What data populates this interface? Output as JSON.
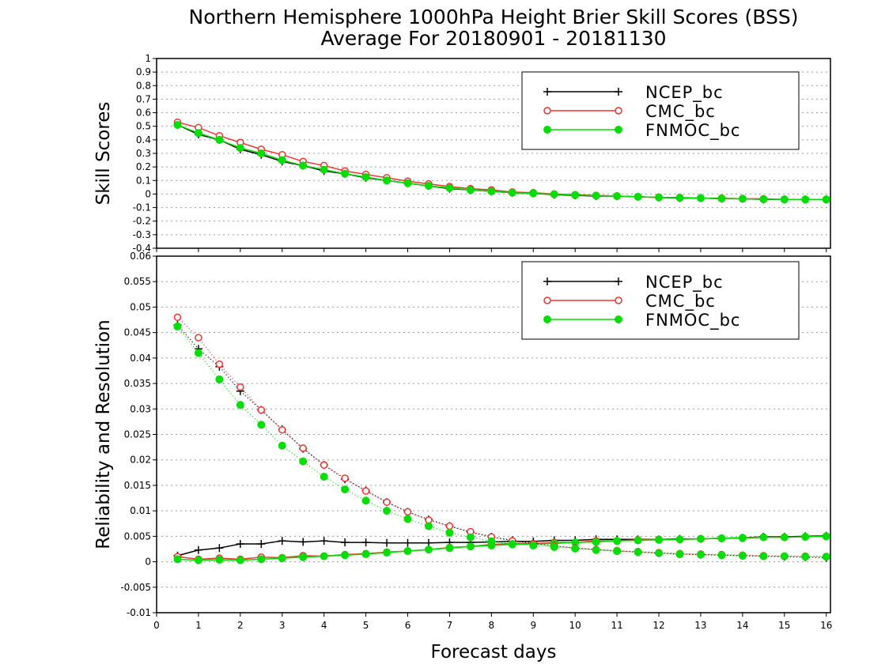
{
  "title_line1": "Northern Hemisphere 1000hPa Height Brier Skill Scores (BSS)",
  "title_line2": "Average For 20180901 - 20181130",
  "xlabel": "Forecast days",
  "colors": {
    "NCEP_bc": "#000000",
    "CMC_bc": "#ee3333",
    "FNMOC_bc": "#00dd00"
  },
  "chart_data": [
    {
      "type": "line",
      "ylabel": "Skill Scores",
      "xlim": [
        0,
        16.1
      ],
      "ylim": [
        -0.4,
        1
      ],
      "grid": true,
      "legend_position": "top-right",
      "x_ticks": [
        0,
        1,
        2,
        3,
        4,
        5,
        6,
        7,
        8,
        9,
        10,
        11,
        12,
        13,
        14,
        15,
        16
      ],
      "y_ticks": [
        -0.4,
        -0.3,
        -0.2,
        -0.1,
        0,
        0.1,
        0.2,
        0.3,
        0.4,
        0.5,
        0.6,
        0.7,
        0.8,
        0.9,
        1
      ],
      "y_tick_labels": [
        "-0.4",
        "-0.3",
        "-0.2",
        "-0.1",
        "0",
        "0.1",
        "0.2",
        "0.3",
        "0.4",
        "0.5",
        "0.6",
        "0.7",
        "0.8",
        "0.9",
        "1"
      ],
      "x": [
        0.5,
        1,
        1.5,
        2,
        2.5,
        3,
        3.5,
        4,
        4.5,
        5,
        5.5,
        6,
        6.5,
        7,
        7.5,
        8,
        8.5,
        9,
        9.5,
        10,
        10.5,
        11,
        11.5,
        12,
        12.5,
        13,
        13.5,
        14,
        14.5,
        15,
        15.5,
        16
      ],
      "series": [
        {
          "name": "NCEP_bc",
          "marker": "plus",
          "style": "solid",
          "values": [
            0.51,
            0.44,
            0.4,
            0.33,
            0.29,
            0.24,
            0.21,
            0.17,
            0.15,
            0.12,
            0.1,
            0.08,
            0.06,
            0.04,
            0.03,
            0.02,
            0.01,
            0.005,
            -0.005,
            -0.01,
            -0.015,
            -0.015,
            -0.02,
            -0.025,
            -0.03,
            -0.03,
            -0.035,
            -0.035,
            -0.04,
            -0.04,
            -0.04,
            -0.04
          ]
        },
        {
          "name": "CMC_bc",
          "marker": "open-circle",
          "style": "solid",
          "values": [
            0.53,
            0.49,
            0.43,
            0.38,
            0.33,
            0.29,
            0.24,
            0.21,
            0.17,
            0.145,
            0.12,
            0.095,
            0.075,
            0.055,
            0.04,
            0.03,
            0.015,
            0.01,
            0.0,
            -0.005,
            -0.01,
            -0.015,
            -0.02,
            -0.025,
            -0.025,
            -0.03,
            -0.03,
            -0.035,
            -0.035,
            -0.04,
            -0.04,
            -0.04
          ]
        },
        {
          "name": "FNMOC_bc",
          "marker": "filled-circle",
          "style": "solid",
          "values": [
            0.51,
            0.45,
            0.4,
            0.34,
            0.3,
            0.25,
            0.21,
            0.18,
            0.15,
            0.125,
            0.1,
            0.08,
            0.06,
            0.045,
            0.03,
            0.02,
            0.01,
            0.005,
            -0.002,
            -0.008,
            -0.012,
            -0.015,
            -0.02,
            -0.025,
            -0.028,
            -0.03,
            -0.033,
            -0.035,
            -0.038,
            -0.04,
            -0.04,
            -0.04
          ]
        }
      ]
    },
    {
      "type": "line",
      "ylabel": "Reliability and Resolution",
      "xlim": [
        0,
        16.1
      ],
      "ylim": [
        -0.01,
        0.06
      ],
      "grid": true,
      "legend_position": "top-right",
      "x_ticks": [
        0,
        1,
        2,
        3,
        4,
        5,
        6,
        7,
        8,
        9,
        10,
        11,
        12,
        13,
        14,
        15,
        16
      ],
      "y_ticks": [
        -0.01,
        -0.005,
        0,
        0.005,
        0.01,
        0.015,
        0.02,
        0.025,
        0.03,
        0.035,
        0.04,
        0.045,
        0.05,
        0.055,
        0.06
      ],
      "y_tick_labels": [
        "-0.01",
        "-0.005",
        "0",
        "0.005",
        "0.01",
        "0.015",
        "0.02",
        "0.025",
        "0.03",
        "0.035",
        "0.04",
        "0.045",
        "0.05",
        "0.055",
        "0.06"
      ],
      "x": [
        0.5,
        1,
        1.5,
        2,
        2.5,
        3,
        3.5,
        4,
        4.5,
        5,
        5.5,
        6,
        6.5,
        7,
        7.5,
        8,
        8.5,
        9,
        9.5,
        10,
        10.5,
        11,
        11.5,
        12,
        12.5,
        13,
        13.5,
        14,
        14.5,
        15,
        15.5,
        16
      ],
      "series": [
        {
          "name": "NCEP_bc",
          "marker": "plus",
          "style": "solid",
          "group": "reliability",
          "values": [
            0.0012,
            0.0023,
            0.0027,
            0.0035,
            0.0035,
            0.0041,
            0.0039,
            0.0041,
            0.0038,
            0.0038,
            0.0037,
            0.0037,
            0.0037,
            0.0038,
            0.0038,
            0.0039,
            0.004,
            0.004,
            0.0042,
            0.0042,
            0.0044,
            0.0044,
            0.0044,
            0.0044,
            0.0045,
            0.0045,
            0.0046,
            0.0047,
            0.0049,
            0.0049,
            0.005,
            0.0051
          ]
        },
        {
          "name": "CMC_bc",
          "marker": "open-circle",
          "style": "solid",
          "group": "reliability",
          "values": [
            0.001,
            0.0005,
            0.0007,
            0.0005,
            0.0009,
            0.0008,
            0.0012,
            0.0011,
            0.0014,
            0.0016,
            0.0019,
            0.0021,
            0.0024,
            0.0028,
            0.003,
            0.0034,
            0.0036,
            0.0036,
            0.0038,
            0.0038,
            0.0041,
            0.0041,
            0.0043,
            0.0044,
            0.0044,
            0.0045,
            0.0046,
            0.0046,
            0.0048,
            0.0048,
            0.0049,
            0.005
          ]
        },
        {
          "name": "FNMOC_bc",
          "marker": "filled-circle",
          "style": "solid",
          "group": "reliability",
          "values": [
            0.0005,
            0.0003,
            0.0004,
            0.0003,
            0.0005,
            0.0007,
            0.0009,
            0.0011,
            0.0013,
            0.0015,
            0.0018,
            0.0021,
            0.0024,
            0.0027,
            0.003,
            0.0032,
            0.0034,
            0.0035,
            0.0036,
            0.0038,
            0.0039,
            0.0041,
            0.0042,
            0.0043,
            0.0044,
            0.0045,
            0.0046,
            0.0047,
            0.0048,
            0.0048,
            0.0049,
            0.005
          ]
        },
        {
          "name": "NCEP_bc",
          "marker": "plus",
          "style": "dotted",
          "group": "resolution",
          "values": [
            0.0465,
            0.0418,
            0.0383,
            0.0335,
            0.0298,
            0.026,
            0.0222,
            0.019,
            0.0162,
            0.014,
            0.0117,
            0.0098,
            0.0083,
            0.007,
            0.0058,
            0.0049,
            0.0042,
            0.0036,
            0.0031,
            0.0027,
            0.0024,
            0.0021,
            0.0019,
            0.0017,
            0.0015,
            0.0014,
            0.0013,
            0.0012,
            0.0011,
            0.001,
            0.0009,
            0.0008
          ]
        },
        {
          "name": "CMC_bc",
          "marker": "open-circle",
          "style": "dotted",
          "group": "resolution",
          "values": [
            0.048,
            0.044,
            0.0388,
            0.0343,
            0.0298,
            0.0259,
            0.0223,
            0.019,
            0.0164,
            0.0139,
            0.0117,
            0.0098,
            0.0082,
            0.007,
            0.0059,
            0.0049,
            0.0041,
            0.0035,
            0.0031,
            0.0027,
            0.0024,
            0.0022,
            0.002,
            0.0018,
            0.0016,
            0.0015,
            0.0014,
            0.0013,
            0.0012,
            0.0011,
            0.0011,
            0.001
          ]
        },
        {
          "name": "FNMOC_bc",
          "marker": "filled-circle",
          "style": "dotted",
          "group": "resolution",
          "values": [
            0.0462,
            0.041,
            0.0358,
            0.0308,
            0.0269,
            0.0228,
            0.0197,
            0.0167,
            0.0142,
            0.012,
            0.01,
            0.0084,
            0.007,
            0.0057,
            0.0048,
            0.004,
            0.0035,
            0.0032,
            0.0029,
            0.0026,
            0.0023,
            0.0021,
            0.0019,
            0.0017,
            0.0015,
            0.0014,
            0.0013,
            0.0012,
            0.0011,
            0.0011,
            0.001,
            0.001
          ]
        }
      ]
    }
  ]
}
